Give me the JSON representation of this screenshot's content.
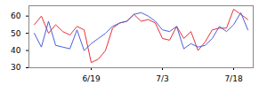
{
  "chart_data": {
    "type": "line",
    "categories": [
      null,
      null,
      null,
      null,
      null,
      null,
      null,
      null,
      "6/19",
      null,
      null,
      null,
      null,
      null,
      null,
      null,
      null,
      null,
      "7/3",
      null,
      null,
      null,
      null,
      null,
      null,
      null,
      null,
      null,
      "7/18",
      null,
      null
    ],
    "series": [
      {
        "color": "#e8303a",
        "values": [
          55,
          60,
          50,
          55,
          51,
          49,
          54,
          52,
          33,
          35,
          40,
          53,
          56,
          57,
          61,
          57,
          58,
          56,
          47,
          46,
          54,
          47,
          51,
          40,
          45,
          52,
          53,
          53,
          64,
          61,
          58
        ]
      },
      {
        "color": "#4a5fd6",
        "values": [
          50,
          42,
          57,
          43,
          42,
          41,
          52,
          40,
          44,
          47,
          50,
          54,
          56,
          57,
          61,
          62,
          60,
          57,
          52,
          51,
          54,
          41,
          44,
          42,
          43,
          47,
          54,
          51,
          55,
          62,
          52
        ]
      }
    ],
    "ylim": [
      30,
      66
    ],
    "yticks": [
      30,
      40,
      50,
      60
    ],
    "grid": false
  }
}
